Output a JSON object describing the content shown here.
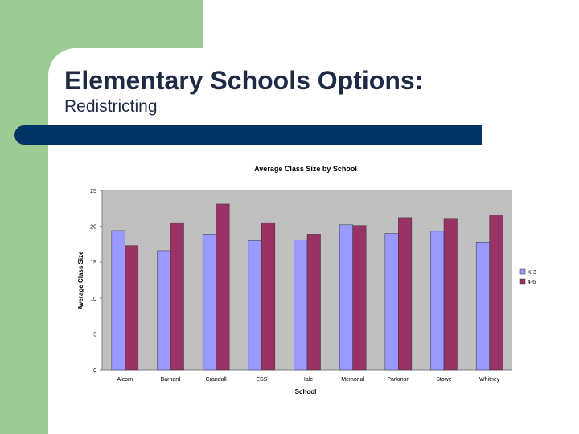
{
  "slide": {
    "title": "Elementary Schools Options:",
    "subtitle": "Redistricting"
  },
  "colors": {
    "green": "#9ccc94",
    "navy": "#003366",
    "plot_bg": "#c0c0c0",
    "k3": "#9999ff",
    "g46": "#993366"
  },
  "chart_data": {
    "type": "bar",
    "title": "Average Class Size by School",
    "xlabel": "School",
    "ylabel": "Average Class Size",
    "ylim": [
      0,
      25
    ],
    "yticks": [
      "0",
      "5",
      "10",
      "15",
      "20",
      "25"
    ],
    "grid": false,
    "legend_position": "right",
    "categories": [
      "Alcorn",
      "Barnard",
      "Crandall",
      "ESS",
      "Hale",
      "Memorial",
      "Parkman",
      "Stowe",
      "Whitney"
    ],
    "series": [
      {
        "name": "K-3",
        "values": [
          19.4,
          16.6,
          18.9,
          18.0,
          18.1,
          20.2,
          19.0,
          19.3,
          17.8
        ]
      },
      {
        "name": "4-6",
        "values": [
          17.3,
          20.5,
          23.1,
          20.5,
          18.9,
          20.1,
          21.2,
          21.1,
          21.6
        ]
      }
    ]
  }
}
